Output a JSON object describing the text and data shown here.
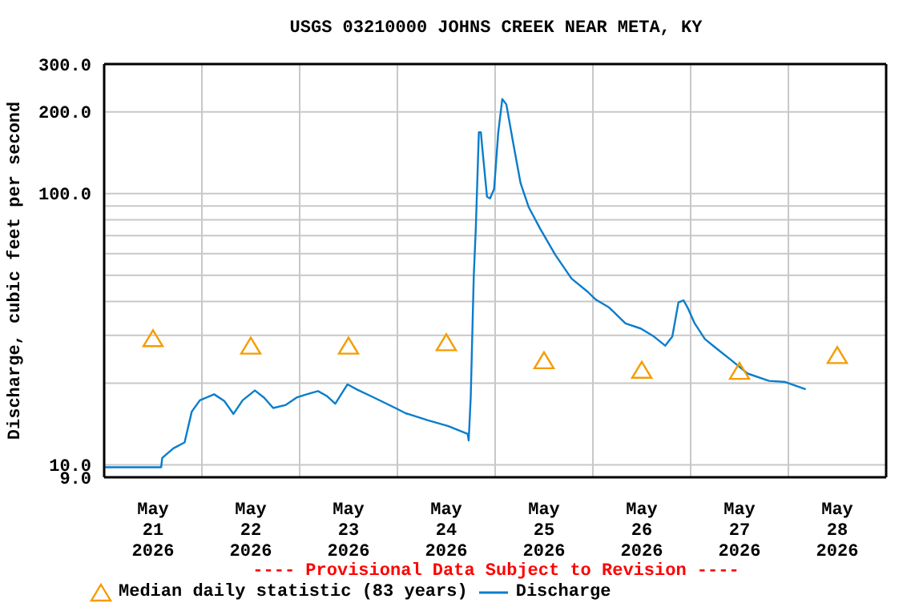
{
  "chart_data": {
    "type": "line",
    "title": "USGS 03210000 JOHNS CREEK NEAR META, KY",
    "ylabel": "Discharge, cubic feet per second",
    "log": true,
    "grid": true,
    "legend": "bottom",
    "annotations": [
      "---- Provisional Data Subject to Revision ----"
    ],
    "xlim": [
      "2026-05-21T00:00",
      "2026-05-29T00:00"
    ],
    "xticks": [
      {
        "value": "2026-05-21T12:00",
        "label": "May\n21\n2026"
      },
      {
        "value": "2026-05-22T00:00",
        "label": null
      },
      {
        "value": "2026-05-22T12:00",
        "label": "May\n22\n2026"
      },
      {
        "value": "2026-05-23T00:00",
        "label": null
      },
      {
        "value": "2026-05-23T12:00",
        "label": "May\n23\n2026"
      },
      {
        "value": "2026-05-24T00:00",
        "label": null
      },
      {
        "value": "2026-05-24T12:00",
        "label": "May\n24\n2026"
      },
      {
        "value": "2026-05-25T00:00",
        "label": null
      },
      {
        "value": "2026-05-25T12:00",
        "label": "May\n25\n2026"
      },
      {
        "value": "2026-05-26T00:00",
        "label": null
      },
      {
        "value": "2026-05-26T12:00",
        "label": "May\n26\n2026"
      },
      {
        "value": "2026-05-27T00:00",
        "label": null
      },
      {
        "value": "2026-05-27T12:00",
        "label": "May\n27\n2026"
      },
      {
        "value": "2026-05-28T00:00",
        "label": null
      },
      {
        "value": "2026-05-28T12:00",
        "label": "May\n28\n2026"
      }
    ],
    "ylim": [
      9,
      300
    ],
    "yticks": [
      {
        "value": 9,
        "label": "9.0"
      },
      {
        "value": 10,
        "label": "10.0"
      },
      {
        "value": 20,
        "label": null
      },
      {
        "value": 30,
        "label": null
      },
      {
        "value": 40,
        "label": null
      },
      {
        "value": 50,
        "label": null
      },
      {
        "value": 60,
        "label": null
      },
      {
        "value": 70,
        "label": null
      },
      {
        "value": 80,
        "label": null
      },
      {
        "value": 90,
        "label": null
      },
      {
        "value": 100,
        "label": "100.0"
      },
      {
        "value": 200,
        "label": "200.0"
      },
      {
        "value": 300,
        "label": "300.0"
      }
    ],
    "series": [
      {
        "name": "Median daily statistic (83 years)",
        "type": "scatter",
        "marker": "triangle",
        "color": "#f59c00",
        "x": [
          "2026-05-21T12:00",
          "2026-05-22T12:00",
          "2026-05-23T12:00",
          "2026-05-24T12:00",
          "2026-05-25T12:00",
          "2026-05-26T12:00",
          "2026-05-27T12:00",
          "2026-05-28T12:00"
        ],
        "values": [
          29.3,
          27.5,
          27.5,
          28.3,
          24.3,
          22.4,
          22.2,
          25.4
        ]
      },
      {
        "name": "Discharge",
        "marker": "none",
        "color": "#0a7dcc",
        "x": [
          "2026-05-21T00:00",
          "2026-05-21T14:00",
          "2026-05-21T14:15",
          "2026-05-21T17:00",
          "2026-05-21T19:45",
          "2026-05-21T21:30",
          "2026-05-21T23:30",
          "2026-05-22T03:00",
          "2026-05-22T05:30",
          "2026-05-22T07:45",
          "2026-05-22T10:00",
          "2026-05-22T13:00",
          "2026-05-22T15:15",
          "2026-05-22T17:30",
          "2026-05-22T20:30",
          "2026-05-22T23:15",
          "2026-05-23T01:45",
          "2026-05-23T04:30",
          "2026-05-23T06:45",
          "2026-05-23T08:45",
          "2026-05-23T11:45",
          "2026-05-23T14:15",
          "2026-05-23T18:15",
          "2026-05-23T23:30",
          "2026-05-24T02:00",
          "2026-05-24T07:30",
          "2026-05-24T12:30",
          "2026-05-24T17:15",
          "2026-05-24T17:30",
          "2026-05-24T18:00",
          "2026-05-24T18:45",
          "2026-05-24T19:15",
          "2026-05-24T20:00",
          "2026-05-24T20:30",
          "2026-05-24T21:00",
          "2026-05-24T22:00",
          "2026-05-24T22:45",
          "2026-05-24T23:45",
          "2026-05-25T00:45",
          "2026-05-25T01:45",
          "2026-05-25T02:45",
          "2026-05-25T04:15",
          "2026-05-25T06:15",
          "2026-05-25T08:15",
          "2026-05-25T11:00",
          "2026-05-25T14:45",
          "2026-05-25T18:45",
          "2026-05-25T22:45",
          "2026-05-26T00:45",
          "2026-05-26T04:00",
          "2026-05-26T08:00",
          "2026-05-26T11:45",
          "2026-05-26T15:00",
          "2026-05-26T17:45",
          "2026-05-26T19:30",
          "2026-05-26T21:00",
          "2026-05-26T22:15",
          "2026-05-26T23:15",
          "2026-05-27T01:00",
          "2026-05-27T03:30",
          "2026-05-27T06:00",
          "2026-05-27T10:00",
          "2026-05-27T14:00",
          "2026-05-27T19:15",
          "2026-05-27T23:15",
          "2026-05-28T04:15"
        ],
        "values": [
          9.8,
          9.8,
          10.6,
          11.5,
          12.1,
          15.7,
          17.3,
          18.2,
          17.2,
          15.4,
          17.3,
          18.8,
          17.7,
          16.2,
          16.6,
          17.7,
          18.2,
          18.7,
          17.9,
          16.8,
          19.8,
          18.9,
          17.7,
          16.2,
          15.5,
          14.6,
          13.9,
          13.0,
          12.3,
          17.7,
          49.7,
          74.4,
          168,
          168,
          139,
          97.3,
          96,
          104,
          167,
          223,
          213,
          159,
          109,
          89,
          74.4,
          59.5,
          48.6,
          43.4,
          40.6,
          38.0,
          33.2,
          31.8,
          29.7,
          27.5,
          29.7,
          39.7,
          40.4,
          38.0,
          33.2,
          29.1,
          27.1,
          24.3,
          21.7,
          20.4,
          20.2,
          19.0
        ]
      }
    ]
  }
}
